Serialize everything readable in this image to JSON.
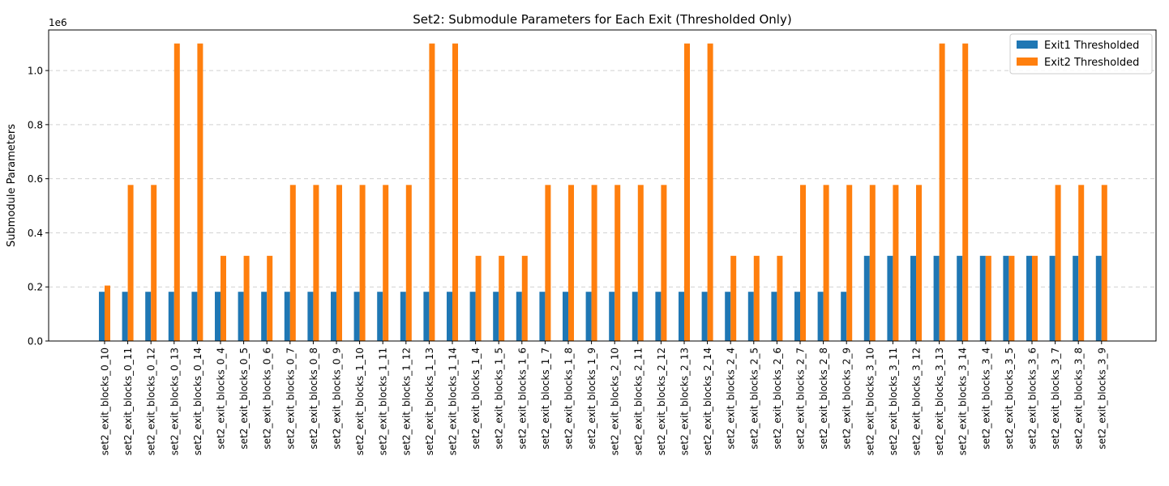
{
  "chart_data": {
    "type": "bar",
    "title": "Set2: Submodule Parameters for Each Exit (Thresholded Only)",
    "xlabel": "",
    "ylabel": "Submodule Parameters",
    "y_offset_label": "1e6",
    "ylim": [
      0,
      1150000
    ],
    "yticks": [
      0,
      200000,
      400000,
      600000,
      800000,
      1000000
    ],
    "ytick_labels": [
      "0.0",
      "0.2",
      "0.4",
      "0.6",
      "0.8",
      "1.0"
    ],
    "grid": "y-dashed",
    "legend_position": "top-right",
    "categories": [
      "set2_exit_blocks_0_10",
      "set2_exit_blocks_0_11",
      "set2_exit_blocks_0_12",
      "set2_exit_blocks_0_13",
      "set2_exit_blocks_0_14",
      "set2_exit_blocks_0_4",
      "set2_exit_blocks_0_5",
      "set2_exit_blocks_0_6",
      "set2_exit_blocks_0_7",
      "set2_exit_blocks_0_8",
      "set2_exit_blocks_0_9",
      "set2_exit_blocks_1_10",
      "set2_exit_blocks_1_11",
      "set2_exit_blocks_1_12",
      "set2_exit_blocks_1_13",
      "set2_exit_blocks_1_14",
      "set2_exit_blocks_1_4",
      "set2_exit_blocks_1_5",
      "set2_exit_blocks_1_6",
      "set2_exit_blocks_1_7",
      "set2_exit_blocks_1_8",
      "set2_exit_blocks_1_9",
      "set2_exit_blocks_2_10",
      "set2_exit_blocks_2_11",
      "set2_exit_blocks_2_12",
      "set2_exit_blocks_2_13",
      "set2_exit_blocks_2_14",
      "set2_exit_blocks_2_4",
      "set2_exit_blocks_2_5",
      "set2_exit_blocks_2_6",
      "set2_exit_blocks_2_7",
      "set2_exit_blocks_2_8",
      "set2_exit_blocks_2_9",
      "set2_exit_blocks_3_10",
      "set2_exit_blocks_3_11",
      "set2_exit_blocks_3_12",
      "set2_exit_blocks_3_13",
      "set2_exit_blocks_3_14",
      "set2_exit_blocks_3_4",
      "set2_exit_blocks_3_5",
      "set2_exit_blocks_3_6",
      "set2_exit_blocks_3_7",
      "set2_exit_blocks_3_8",
      "set2_exit_blocks_3_9"
    ],
    "series": [
      {
        "name": "Exit1 Thresholded",
        "color": "#1f77b4",
        "values": [
          182000,
          182000,
          182000,
          182000,
          182000,
          182000,
          182000,
          182000,
          182000,
          182000,
          182000,
          182000,
          182000,
          182000,
          182000,
          182000,
          182000,
          182000,
          182000,
          182000,
          182000,
          182000,
          182000,
          182000,
          182000,
          182000,
          182000,
          182000,
          182000,
          182000,
          182000,
          182000,
          182000,
          315000,
          315000,
          315000,
          315000,
          315000,
          315000,
          315000,
          315000,
          315000,
          315000,
          315000
        ]
      },
      {
        "name": "Exit2 Thresholded",
        "color": "#ff7f0e",
        "values": [
          205000,
          577000,
          577000,
          1100000,
          1100000,
          315000,
          315000,
          315000,
          577000,
          577000,
          577000,
          577000,
          577000,
          577000,
          1100000,
          1100000,
          315000,
          315000,
          315000,
          577000,
          577000,
          577000,
          577000,
          577000,
          577000,
          1100000,
          1100000,
          315000,
          315000,
          315000,
          577000,
          577000,
          577000,
          577000,
          577000,
          577000,
          1100000,
          1100000,
          315000,
          315000,
          315000,
          577000,
          577000,
          577000
        ]
      }
    ]
  }
}
